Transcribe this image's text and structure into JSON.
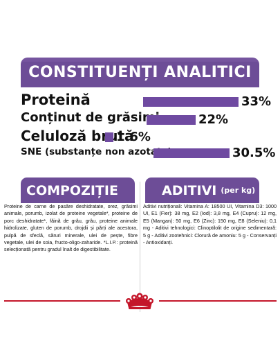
{
  "header": {
    "title": "CONSTITUENȚI ANALITICI"
  },
  "analytics": [
    {
      "label": "Proteină",
      "value": "33%",
      "level": 33
    },
    {
      "label": "Conținut de grăsimi",
      "value": "22%",
      "level": 22
    },
    {
      "label": "Celuloză brută",
      "value": "1.6%",
      "level": 1.6
    },
    {
      "label": "SNE (substanțe non azotate)",
      "value": "30.5%",
      "level": 30.5
    }
  ],
  "composition": {
    "title": "COMPOZIȚIE",
    "text": "Proteine de carne de pasăre deshidratate, orez, grăsimi animale, porumb, izolat de proteine vegetale*, proteine de porc deshidratate*, făină de grâu, grâu, proteine animale hidrolizate, gluten de porumb, drojdii și părți ale acestora, pulpă de sfeclă, săruri minerale, ulei de pește, fibre vegetale, ulei de soia, fructo-oligo-zaharide. *L.I.P.: proteină selecționată pentru gradul înalt de digestibilitate."
  },
  "additives": {
    "title": "ADITIVI",
    "title_unit": "(per kg)",
    "text": "Aditivi nutriționali: Vitamina A: 18500 UI, Vitamina D3: 1000 UI, E1 (Fier): 38 mg, E2 (Iod): 3,8 mg, E4 (Cupru): 12 mg, E5 (Mangan): 50 mg, E6 (Zinc): 150 mg, E8 (Seleniu): 0,1 mg - Aditivi tehnologici: Clinoptilolit de origine sedimentară: 5 g - Aditivi zootehnici: Clorură de amoniu: 5 g - Conservanți - Antioxidanți."
  },
  "colors": {
    "brand_purple": "#6d4d97",
    "bar_purple": "#6f4aa1",
    "royal_red": "#c4162a"
  },
  "footer": {
    "logo_icon": "royal-canin-crown-icon"
  }
}
